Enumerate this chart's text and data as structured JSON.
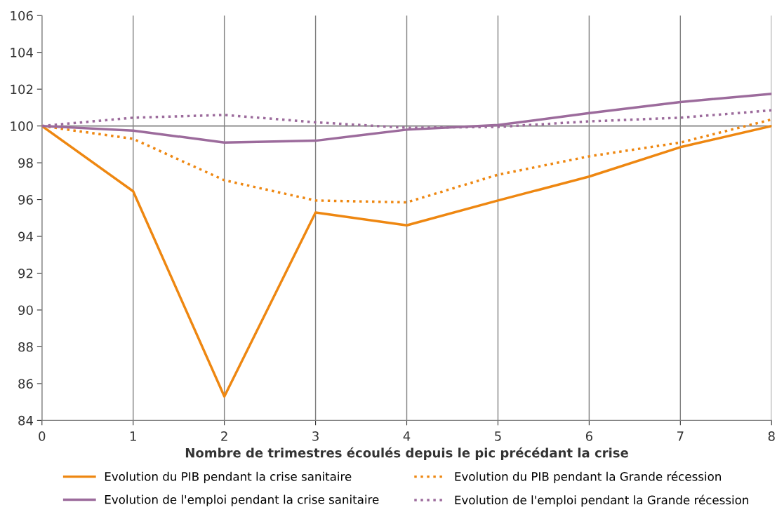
{
  "chart_data": {
    "type": "line",
    "xlabel": "Nombre de trimestres écoulés depuis le pic précédant la crise",
    "x": [
      0,
      1,
      2,
      3,
      4,
      5,
      6,
      7,
      8
    ],
    "series": [
      {
        "name": "Evolution du PIB pendant la crise sanitaire",
        "color": "#ee8711",
        "line_style": "solid",
        "values": [
          100,
          96.45,
          85.3,
          95.3,
          94.6,
          95.95,
          97.25,
          98.85,
          100.0
        ]
      },
      {
        "name": "Evolution du PIB pendant la Grande récession",
        "color": "#ee8711",
        "line_style": "dotted",
        "values": [
          100,
          99.3,
          97.05,
          95.95,
          95.85,
          97.35,
          98.35,
          99.1,
          100.35
        ]
      },
      {
        "name": "Evolution de l'emploi pendant la crise sanitaire",
        "color": "#9c6b9c",
        "line_style": "solid",
        "values": [
          100,
          99.75,
          99.1,
          99.2,
          99.8,
          100.05,
          100.7,
          101.3,
          101.75
        ]
      },
      {
        "name": "Evolution de l'emploi pendant la Grande récession",
        "color": "#9c6b9c",
        "line_style": "dotted",
        "values": [
          100,
          100.45,
          100.6,
          100.2,
          99.9,
          99.95,
          100.25,
          100.45,
          100.85
        ]
      }
    ],
    "xlim": [
      0,
      8
    ],
    "xticks": [
      0,
      1,
      2,
      3,
      4,
      5,
      6,
      7,
      8
    ],
    "ylim": [
      84,
      106
    ],
    "yticks": [
      84,
      86,
      88,
      90,
      92,
      94,
      96,
      98,
      100,
      102,
      104,
      106
    ],
    "ref_lines": [
      {
        "axis": "y",
        "value": 100,
        "label": null,
        "color": "#808080"
      }
    ],
    "grid": "x",
    "legend": "bottom",
    "marker": "none"
  }
}
